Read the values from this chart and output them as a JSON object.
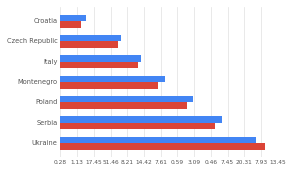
{
  "categories": [
    "Ukraine",
    "Serbia",
    "Poland",
    "Montenegro",
    "Italy",
    "Czech Republic",
    "Croatia"
  ],
  "blue_values": [
    26.5,
    22.0,
    18.0,
    14.2,
    11.0,
    8.2,
    3.5
  ],
  "red_values": [
    27.8,
    21.0,
    17.2,
    13.2,
    10.5,
    7.8,
    2.8
  ],
  "blue_color": "#4285F4",
  "red_color": "#DB4437",
  "bg_color": "#FFFFFF",
  "grid_color": "#E0E0E0",
  "xtick_labels": [
    "0.28",
    "1.13",
    "17.45",
    "51.46",
    "8.21",
    "14.42",
    "7.61",
    "0.59",
    "3.09",
    "0.46",
    "7.45",
    "20.31",
    "7.93",
    "13.45"
  ],
  "tick_fontsize": 4.2,
  "label_fontsize": 4.8,
  "bar_height": 0.32,
  "xlim_max": 29.5
}
